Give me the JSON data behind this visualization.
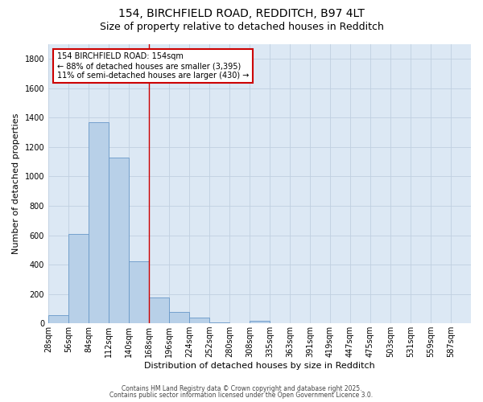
{
  "title_line1": "154, BIRCHFIELD ROAD, REDDITCH, B97 4LT",
  "title_line2": "Size of property relative to detached houses in Redditch",
  "xlabel": "Distribution of detached houses by size in Redditch",
  "ylabel": "Number of detached properties",
  "bin_labels": [
    "28sqm",
    "56sqm",
    "84sqm",
    "112sqm",
    "140sqm",
    "168sqm",
    "196sqm",
    "224sqm",
    "252sqm",
    "280sqm",
    "308sqm",
    "335sqm",
    "363sqm",
    "391sqm",
    "419sqm",
    "447sqm",
    "475sqm",
    "503sqm",
    "531sqm",
    "559sqm",
    "587sqm"
  ],
  "bar_heights": [
    55,
    610,
    1370,
    1130,
    425,
    175,
    75,
    40,
    5,
    0,
    20,
    0,
    0,
    0,
    0,
    0,
    0,
    0,
    0,
    0,
    0
  ],
  "bar_color": "#b8d0e8",
  "bar_edgecolor": "#6898c8",
  "grid_color": "#c0d0e0",
  "bg_color": "#dce8f4",
  "vline_x": 5,
  "vline_color": "#cc0000",
  "annotation_text": "154 BIRCHFIELD ROAD: 154sqm\n← 88% of detached houses are smaller (3,395)\n11% of semi-detached houses are larger (430) →",
  "annotation_box_color": "#cc0000",
  "ylim": [
    0,
    1900
  ],
  "yticks": [
    0,
    200,
    400,
    600,
    800,
    1000,
    1200,
    1400,
    1600,
    1800
  ],
  "footer_line1": "Contains HM Land Registry data © Crown copyright and database right 2025.",
  "footer_line2": "Contains public sector information licensed under the Open Government Licence 3.0.",
  "title_fontsize": 10,
  "subtitle_fontsize": 9,
  "axis_label_fontsize": 8,
  "tick_fontsize": 7,
  "annotation_fontsize": 7,
  "footer_fontsize": 5.5
}
